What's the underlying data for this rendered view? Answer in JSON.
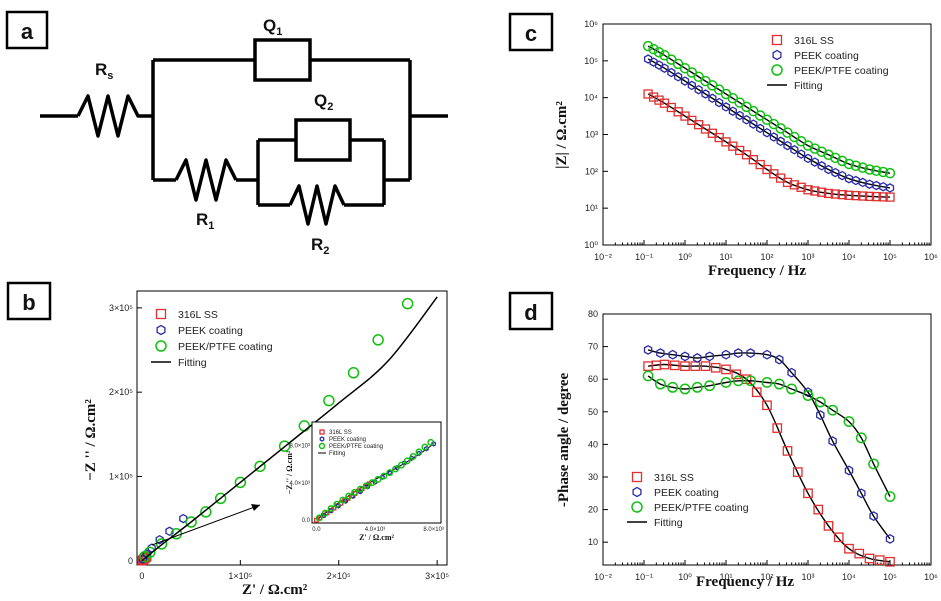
{
  "panel_labels": [
    "a",
    "b",
    "c",
    "d"
  ],
  "circuit": {
    "components": [
      "Rs",
      "Q1",
      "Q2",
      "R1",
      "R2"
    ]
  },
  "colors": {
    "ss": "#e03030",
    "peek": "#2a2aa8",
    "ptfe": "#10c010",
    "fit": "#000000"
  },
  "chart_data": [
    {
      "panel": "b",
      "type": "scatter",
      "title": "",
      "xlabel": "Z' / Ω.cm²",
      "ylabel": "−Z '' / Ω.cm²",
      "xlim": [
        -5000,
        310000
      ],
      "ylim": [
        -5000,
        320000
      ],
      "xticks": [
        "0",
        "1×10⁵",
        "2×10⁵",
        "3×10⁵"
      ],
      "yticks": [
        "0",
        "1×10⁵",
        "2×10⁵",
        "3×10⁵"
      ],
      "legend": [
        "316L SS",
        "PEEK coating",
        "PEEK/PTFE coating",
        "Fitting"
      ],
      "series": [
        {
          "name": "316L SS",
          "x": [
            0,
            500,
            1000,
            1500,
            2000,
            2500,
            3000,
            3500,
            4000,
            4500,
            5000
          ],
          "y": [
            0,
            400,
            1000,
            1500,
            2000,
            2500,
            3000,
            3500,
            4000,
            4500,
            5000
          ]
        },
        {
          "name": "PEEK coating",
          "x": [
            1000,
            5000,
            10000,
            18000,
            28000,
            42000
          ],
          "y": [
            2000,
            8000,
            15000,
            25000,
            35000,
            50000
          ]
        },
        {
          "name": "PEEK/PTFE coating",
          "x": [
            3000,
            8000,
            20000,
            35000,
            50000,
            65000,
            80000,
            100000,
            120000,
            145000,
            165000,
            190000,
            215000,
            240000,
            270000
          ],
          "y": [
            5000,
            10000,
            20000,
            32000,
            46000,
            58000,
            74000,
            93000,
            112000,
            136000,
            160000,
            190000,
            223000,
            262000,
            305000
          ]
        },
        {
          "name": "Fitting",
          "x": [
            0,
            20000,
            50000,
            100000,
            150000,
            200000,
            250000,
            300000
          ],
          "y": [
            0,
            19000,
            46000,
            93000,
            140000,
            187000,
            237000,
            313000
          ]
        }
      ],
      "inset": {
        "xlabel": "Z' / Ω.cm²",
        "ylabel": "−Z '' / Ω.cm²",
        "xticks": [
          "0.0",
          "4.0×10³",
          "8.0×10³"
        ],
        "yticks": [
          "0.0",
          "4.0×10³",
          "8.0×10³"
        ],
        "legend": [
          "316L SS",
          "PEEK coating",
          "PEEK/PTFE coating",
          "Fitting"
        ],
        "xlim": [
          -300,
          8500
        ],
        "ylim": [
          -300,
          10500
        ]
      }
    },
    {
      "panel": "c",
      "type": "scatter",
      "title": "",
      "xlabel": "Frequency / Hz",
      "ylabel": "|Z| / Ω.cm²",
      "xscale": "log",
      "yscale": "log",
      "xlim_exp": [
        -2,
        6
      ],
      "ylim_exp": [
        0,
        6
      ],
      "xticks": [
        "10⁻²",
        "10⁻¹",
        "10⁰",
        "10¹",
        "10²",
        "10³",
        "10⁴",
        "10⁵",
        "10⁶"
      ],
      "yticks": [
        "10⁰",
        "10¹",
        "10²",
        "10³",
        "10⁴",
        "10⁵",
        "10⁶"
      ],
      "legend": [
        "316L SS",
        "PEEK coating",
        "PEEK/PTFE coating",
        "Fitting"
      ],
      "series": [
        {
          "name": "316L SS",
          "logf": [
            -0.9,
            -0.5,
            0,
            0.5,
            1,
            1.5,
            2,
            2.5,
            3,
            3.5,
            4,
            4.5,
            5
          ],
          "logz": [
            4.1,
            3.85,
            3.5,
            3.15,
            2.8,
            2.45,
            2.05,
            1.7,
            1.5,
            1.4,
            1.35,
            1.32,
            1.3
          ]
        },
        {
          "name": "PEEK coating",
          "logf": [
            -0.9,
            -0.5,
            0,
            0.5,
            1,
            1.5,
            2,
            2.5,
            3,
            3.5,
            4,
            4.5,
            5
          ],
          "logz": [
            5.05,
            4.8,
            4.45,
            4.1,
            3.75,
            3.4,
            3.05,
            2.7,
            2.35,
            2.05,
            1.8,
            1.65,
            1.55
          ]
        },
        {
          "name": "PEEK/PTFE coating",
          "logf": [
            -0.9,
            -0.5,
            0,
            0.5,
            1,
            1.5,
            2,
            2.5,
            3,
            3.5,
            4,
            4.5,
            5
          ],
          "logz": [
            5.4,
            5.15,
            4.8,
            4.45,
            4.1,
            3.75,
            3.4,
            3.05,
            2.7,
            2.45,
            2.2,
            2.05,
            1.95
          ]
        }
      ]
    },
    {
      "panel": "d",
      "type": "scatter",
      "title": "",
      "xlabel": "Frequency / Hz",
      "ylabel": "-Phase angle / degree",
      "xscale": "log",
      "xlim_exp": [
        -2,
        6
      ],
      "ylim": [
        3,
        80
      ],
      "xticks": [
        "10⁻²",
        "10⁻¹",
        "10⁰",
        "10¹",
        "10²",
        "10³",
        "10⁴",
        "10⁵",
        "10⁶"
      ],
      "yticks": [
        "10",
        "20",
        "30",
        "40",
        "50",
        "60",
        "70",
        "80"
      ],
      "legend": [
        "316L SS",
        "PEEK coating",
        "PEEK/PTFE coating",
        "Fitting"
      ],
      "series": [
        {
          "name": "316L SS",
          "logf": [
            -0.9,
            -0.5,
            0,
            0.5,
            1,
            1.5,
            2,
            2.5,
            3,
            3.5,
            4,
            4.5,
            5
          ],
          "phase": [
            64,
            64.5,
            64,
            64,
            63,
            60,
            52,
            38,
            25,
            15,
            8,
            5,
            4
          ]
        },
        {
          "name": "PEEK coating",
          "logf": [
            -0.9,
            -0.6,
            -0.3,
            0,
            0.3,
            0.6,
            1,
            1.3,
            1.6,
            2,
            2.3,
            2.6,
            3,
            3.3,
            3.6,
            4,
            4.3,
            4.6,
            5
          ],
          "phase": [
            69,
            68,
            67.5,
            67,
            66.5,
            67,
            67.5,
            68,
            68,
            67.5,
            66,
            62,
            56,
            49,
            41,
            32,
            25,
            18,
            11
          ]
        },
        {
          "name": "PEEK/PTFE coating",
          "logf": [
            -0.9,
            -0.6,
            -0.3,
            0,
            0.3,
            0.6,
            1,
            1.3,
            1.6,
            2,
            2.3,
            2.6,
            3,
            3.3,
            3.6,
            4,
            4.3,
            4.6,
            5
          ],
          "phase": [
            61,
            58.5,
            57.5,
            57,
            57.5,
            58,
            59,
            59.5,
            59.5,
            59,
            58.5,
            57,
            55,
            53,
            50.5,
            47,
            42,
            34,
            24
          ]
        }
      ]
    }
  ]
}
